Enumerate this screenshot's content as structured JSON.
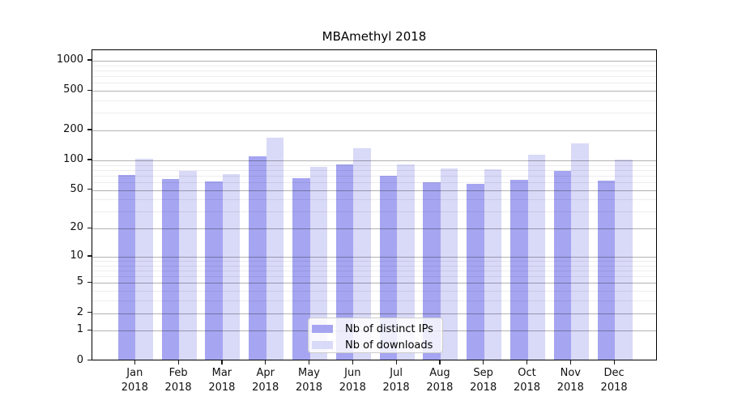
{
  "chart_data": {
    "type": "bar",
    "title": "MBAmethyl 2018",
    "xlabel": "",
    "ylabel": "",
    "yscale": "log1p",
    "grid": true,
    "categories": [
      "Jan",
      "Feb",
      "Mar",
      "Apr",
      "May",
      "Jun",
      "Jul",
      "Aug",
      "Sep",
      "Oct",
      "Nov",
      "Dec"
    ],
    "year_label": "2018",
    "series": [
      {
        "name": "Nb of distinct IPs",
        "color": "#a5a5f1",
        "values": [
          69,
          63,
          60,
          106,
          64,
          89,
          68,
          58,
          56,
          62,
          76,
          61
        ]
      },
      {
        "name": "Nb of downloads",
        "color": "#d9d9f8",
        "values": [
          101,
          76,
          71,
          165,
          83,
          128,
          89,
          80,
          79,
          111,
          144,
          100
        ]
      }
    ],
    "yticks": [
      0,
      1,
      2,
      5,
      10,
      20,
      50,
      100,
      200,
      500,
      1000
    ],
    "minor_gridlines": [
      3,
      4,
      6,
      7,
      8,
      9,
      30,
      40,
      60,
      70,
      80,
      90,
      300,
      400,
      600,
      700,
      800,
      900
    ],
    "ylim": [
      0,
      1275
    ],
    "legend_position": "bottom-center"
  },
  "colors": {
    "distinct_ips": "#a5a5f1",
    "downloads": "#d9d9f8",
    "grid_major": "rgba(0,0,0,0.30)",
    "grid_minor": "rgba(0,0,0,0.07)",
    "axis": "#000000",
    "background": "#ffffff"
  }
}
